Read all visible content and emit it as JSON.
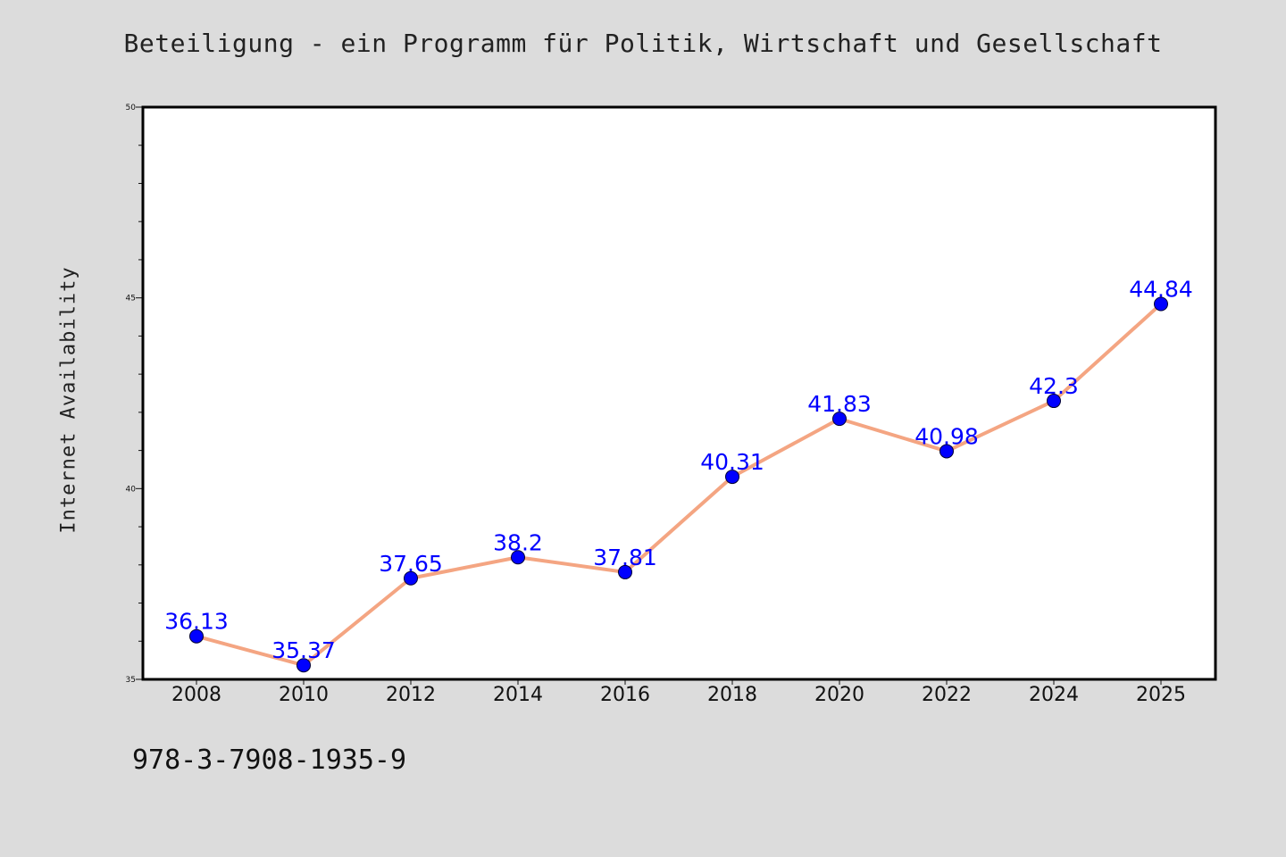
{
  "figure": {
    "background": "#dcdcdc",
    "plot_background": "#ffffff",
    "footer_text": "978-3-7908-1935-9"
  },
  "chart_data": {
    "type": "line",
    "title": "Beteiligung - ein Programm für Politik, Wirtschaft und Gesellschaft",
    "xlabel": "",
    "ylabel": "Internet Availability",
    "categories": [
      "2008",
      "2010",
      "2012",
      "2014",
      "2016",
      "2018",
      "2020",
      "2022",
      "2024",
      "2025"
    ],
    "series": [
      {
        "values": [
          36.13,
          35.37,
          37.65,
          38.2,
          37.81,
          40.31,
          41.83,
          40.98,
          42.3,
          44.84
        ],
        "labels": [
          "36.13",
          "35.37",
          "37.65",
          "38.2",
          "37.81",
          "40.31",
          "41.83",
          "40.98",
          "42.3",
          "44.84"
        ],
        "line_color": "#f4a582",
        "marker_color": "#0000ff",
        "label_color": "#0000ff"
      }
    ],
    "ylim": [
      35,
      50
    ],
    "yticks": [
      "35",
      "40",
      "45",
      "50"
    ],
    "y_minor_step": 1,
    "grid": false,
    "legend": "none"
  }
}
